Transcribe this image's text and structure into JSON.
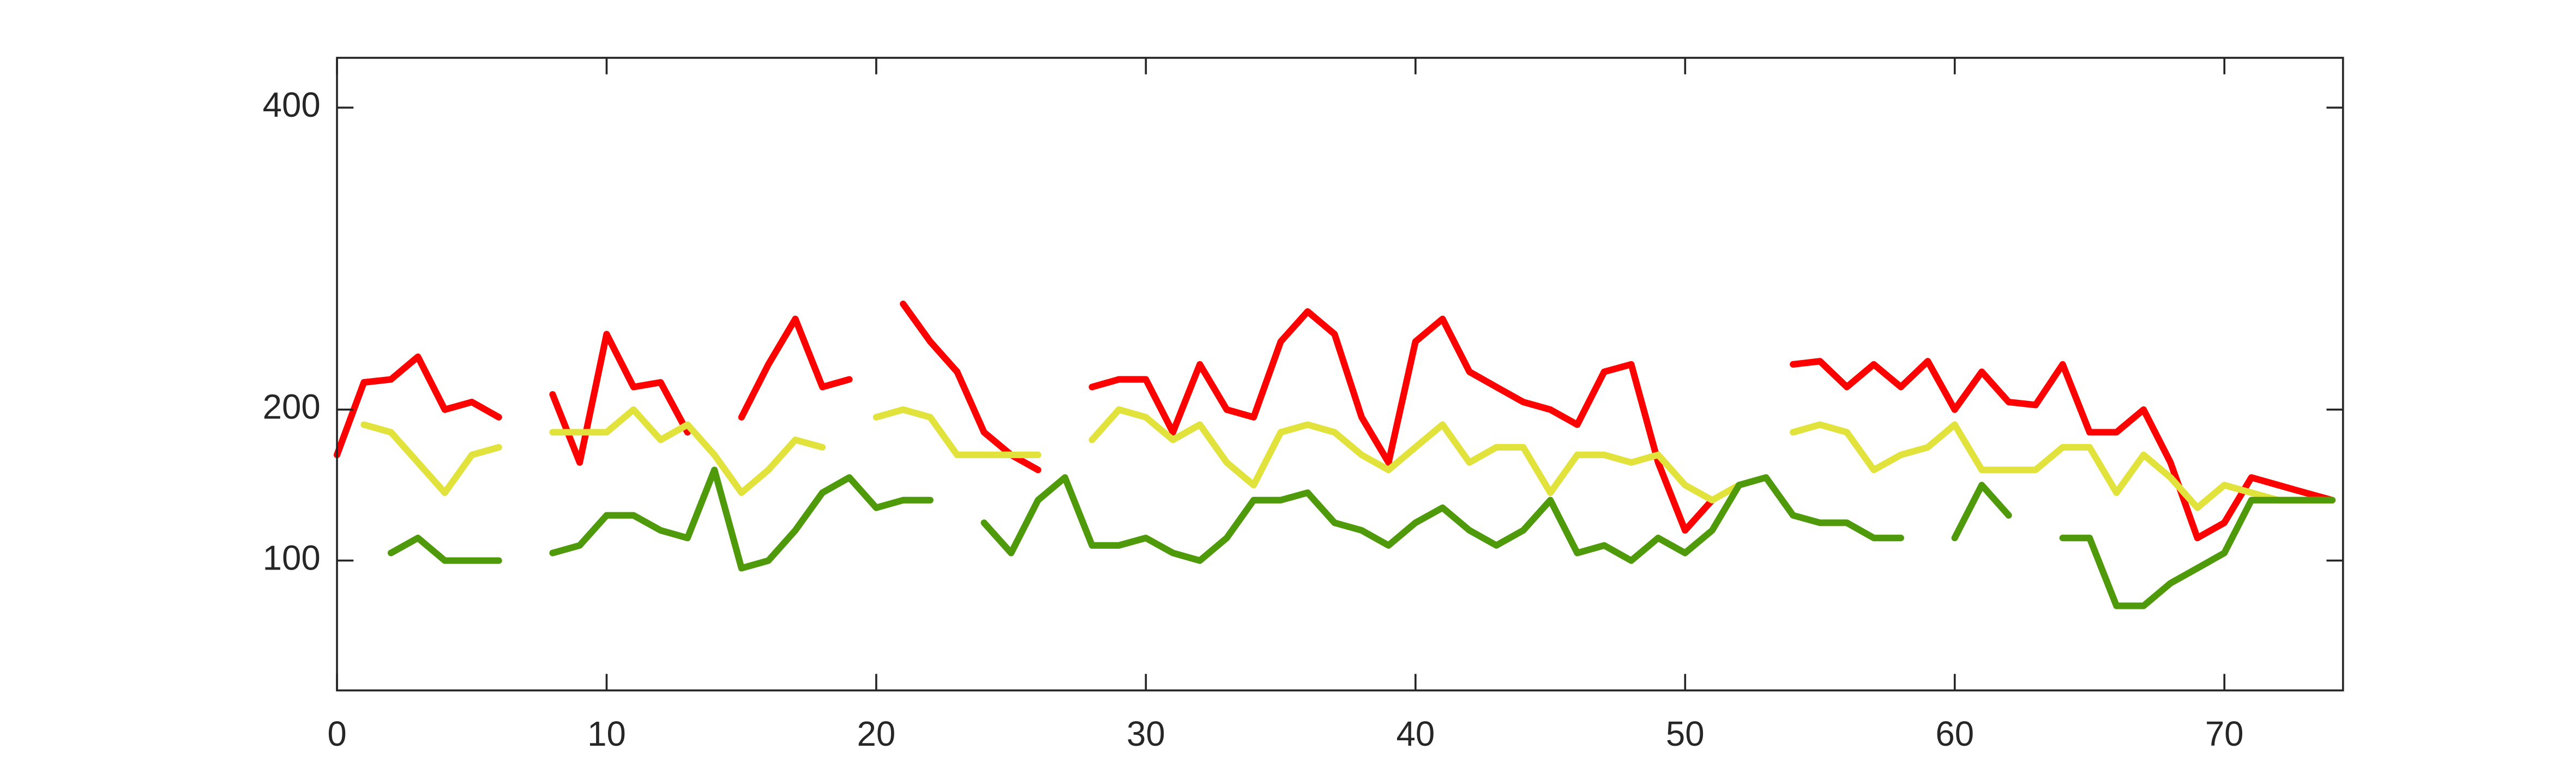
{
  "chart_data": {
    "type": "line",
    "x": [
      0,
      1,
      2,
      3,
      4,
      5,
      6,
      7,
      8,
      9,
      10,
      11,
      12,
      13,
      14,
      15,
      16,
      17,
      18,
      19,
      20,
      21,
      22,
      23,
      24,
      25,
      26,
      27,
      28,
      29,
      30,
      31,
      32,
      33,
      34,
      35,
      36,
      37,
      38,
      39,
      40,
      41,
      42,
      43,
      44,
      45,
      46,
      47,
      48,
      49,
      50,
      51,
      52,
      53,
      54,
      55,
      56,
      57,
      58,
      59,
      60,
      61,
      62,
      63,
      64,
      65,
      66,
      67,
      68,
      69,
      70,
      71,
      72,
      73,
      74
    ],
    "series": [
      {
        "color": "#ff0000",
        "values": [
          170,
          218,
          220,
          235,
          200,
          205,
          195,
          null,
          210,
          165,
          250,
          215,
          218,
          185,
          null,
          195,
          230,
          260,
          215,
          220,
          null,
          270,
          245,
          225,
          185,
          170,
          160,
          null,
          215,
          220,
          220,
          185,
          230,
          200,
          195,
          245,
          265,
          250,
          195,
          165,
          245,
          260,
          225,
          215,
          205,
          200,
          190,
          225,
          230,
          165,
          120,
          140,
          null,
          null,
          230,
          232,
          215,
          230,
          215,
          232,
          200,
          225,
          205,
          203,
          230,
          185,
          185,
          200,
          165,
          115,
          125,
          155,
          150,
          145,
          140
        ]
      },
      {
        "color": "#e2e23c",
        "values": [
          null,
          190,
          185,
          165,
          145,
          170,
          175,
          null,
          185,
          185,
          185,
          200,
          180,
          190,
          170,
          145,
          160,
          180,
          175,
          null,
          195,
          200,
          195,
          170,
          170,
          170,
          170,
          null,
          180,
          200,
          195,
          180,
          190,
          165,
          150,
          185,
          190,
          185,
          170,
          160,
          175,
          190,
          165,
          175,
          175,
          145,
          170,
          170,
          165,
          170,
          150,
          140,
          150,
          null,
          185,
          190,
          185,
          160,
          170,
          175,
          190,
          160,
          160,
          160,
          175,
          175,
          145,
          170,
          155,
          135,
          150,
          145,
          140,
          140,
          140
        ]
      },
      {
        "color": "#4f9a0a",
        "values": [
          null,
          null,
          105,
          115,
          100,
          100,
          100,
          null,
          105,
          110,
          130,
          130,
          120,
          115,
          160,
          95,
          100,
          120,
          145,
          155,
          135,
          140,
          140,
          null,
          125,
          105,
          140,
          155,
          110,
          110,
          115,
          105,
          100,
          115,
          140,
          140,
          145,
          125,
          120,
          110,
          125,
          135,
          120,
          110,
          120,
          140,
          105,
          110,
          100,
          115,
          105,
          120,
          150,
          155,
          130,
          125,
          125,
          115,
          115,
          null,
          115,
          150,
          130,
          null,
          115,
          115,
          70,
          70,
          85,
          95,
          105,
          140,
          140,
          140,
          140
        ]
      }
    ],
    "xlim": [
      0,
      74.4
    ],
    "ylim": [
      14,
      433
    ],
    "xticks": [
      0,
      10,
      20,
      30,
      40,
      50,
      60,
      70
    ],
    "yticks": [
      100,
      200,
      400
    ]
  }
}
